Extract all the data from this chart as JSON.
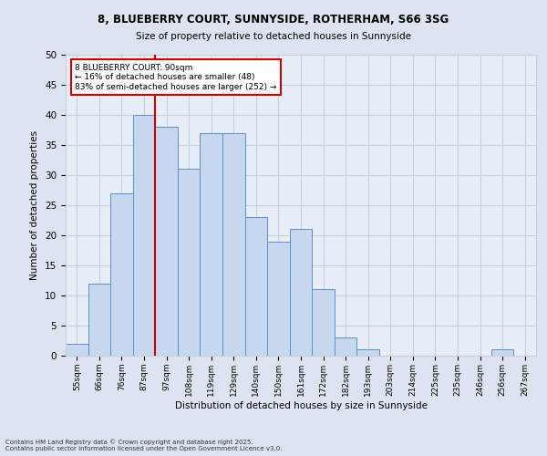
{
  "title_line1": "8, BLUEBERRY COURT, SUNNYSIDE, ROTHERHAM, S66 3SG",
  "title_line2": "Size of property relative to detached houses in Sunnyside",
  "xlabel": "Distribution of detached houses by size in Sunnyside",
  "ylabel": "Number of detached properties",
  "categories": [
    "55sqm",
    "66sqm",
    "76sqm",
    "87sqm",
    "97sqm",
    "108sqm",
    "119sqm",
    "129sqm",
    "140sqm",
    "150sqm",
    "161sqm",
    "172sqm",
    "182sqm",
    "193sqm",
    "203sqm",
    "214sqm",
    "225sqm",
    "235sqm",
    "246sqm",
    "256sqm",
    "267sqm"
  ],
  "values": [
    2,
    12,
    27,
    40,
    38,
    31,
    37,
    37,
    23,
    19,
    21,
    11,
    3,
    1,
    0,
    0,
    0,
    0,
    0,
    1,
    0
  ],
  "bar_color": "#c5d8f0",
  "bar_edge_color": "#5b8fc9",
  "grid_color": "#c8d0dc",
  "background_color": "#e8eef8",
  "fig_background_color": "#dce4f0",
  "annotation_text_line1": "8 BLUEBERRY COURT: 90sqm",
  "annotation_text_line2": "← 16% of detached houses are smaller (48)",
  "annotation_text_line3": "83% of semi-detached houses are larger (252) →",
  "annotation_box_color": "#cc0000",
  "red_line_x": 3.5,
  "ylim": [
    0,
    50
  ],
  "yticks": [
    0,
    5,
    10,
    15,
    20,
    25,
    30,
    35,
    40,
    45,
    50
  ],
  "footer_line1": "Contains HM Land Registry data © Crown copyright and database right 2025.",
  "footer_line2": "Contains public sector information licensed under the Open Government Licence v3.0."
}
